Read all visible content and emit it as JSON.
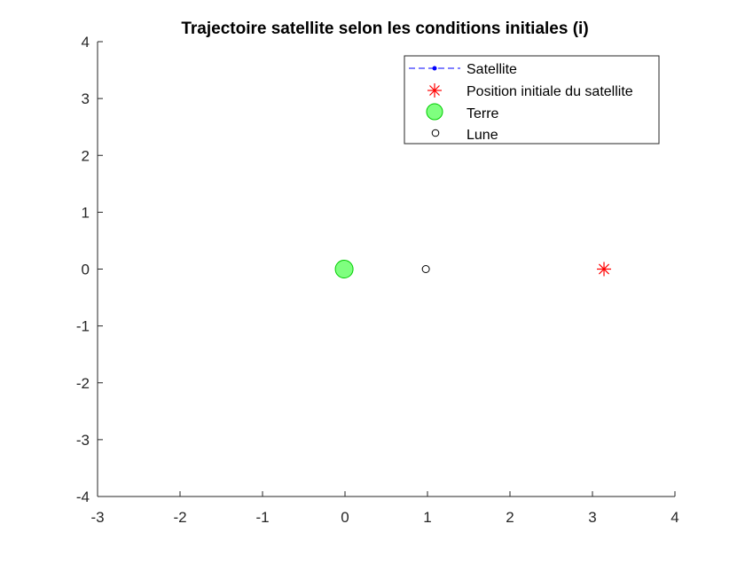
{
  "chart_data": {
    "type": "scatter",
    "title": "Trajectoire satellite selon les conditions initiales (i)",
    "xlabel": "",
    "ylabel": "",
    "xlim": [
      -3,
      4
    ],
    "ylim": [
      -4,
      4
    ],
    "xticks": [
      -3,
      -2,
      -1,
      0,
      1,
      2,
      3,
      4
    ],
    "yticks": [
      -4,
      -3,
      -2,
      -1,
      0,
      1,
      2,
      3,
      4
    ],
    "grid": false,
    "legend_position": "top-right",
    "series": [
      {
        "name": "Satellite",
        "marker": "dot-dashed-line",
        "color": "#0000ff",
        "x": [],
        "y": []
      },
      {
        "name": "Position initiale du satellite",
        "marker": "asterisk",
        "color": "#ff0000",
        "x": [
          3.14
        ],
        "y": [
          0
        ]
      },
      {
        "name": "Terre",
        "marker": "filled-circle",
        "color": "#00ff00",
        "x": [
          -0.01
        ],
        "y": [
          0
        ]
      },
      {
        "name": "Lune",
        "marker": "open-circle",
        "color": "#000000",
        "x": [
          0.98
        ],
        "y": [
          0
        ]
      }
    ]
  }
}
